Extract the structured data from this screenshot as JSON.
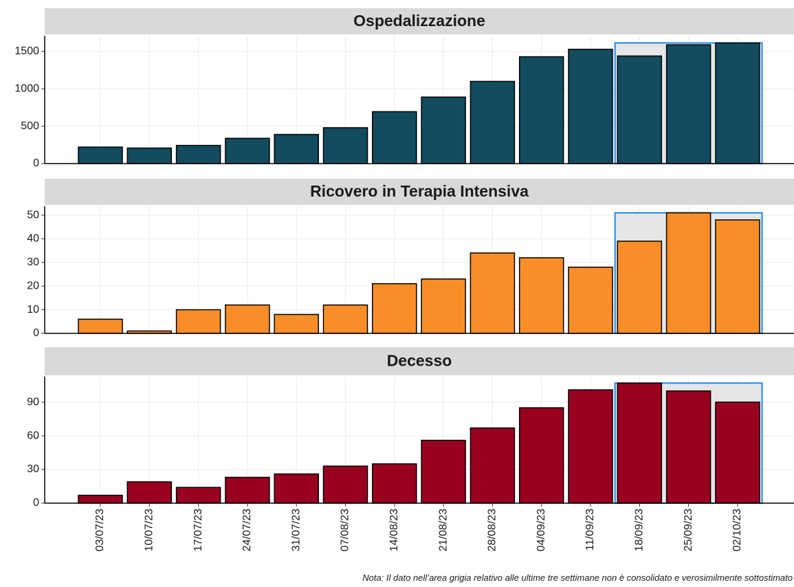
{
  "chart_data": [
    {
      "type": "bar",
      "title": "Ospedalizzazione",
      "color": "#134b5f",
      "values": [
        221,
        208,
        243,
        338,
        390,
        480,
        695,
        890,
        1100,
        1430,
        1530,
        1440,
        1590,
        1615
      ],
      "ylim": [
        0,
        1711
      ],
      "yticks": [
        0,
        500,
        1000,
        1500
      ],
      "grid": true
    },
    {
      "type": "bar",
      "title": "Ricovero in Terapia Intensiva",
      "color": "#f98e29",
      "values": [
        6,
        1,
        10,
        12,
        8,
        12,
        21,
        23,
        34,
        32,
        28,
        39,
        51,
        48
      ],
      "ylim": [
        0,
        53.8
      ],
      "yticks": [
        0,
        10,
        20,
        30,
        40,
        50
      ],
      "grid": true
    },
    {
      "type": "bar",
      "title": "Decesso",
      "color": "#99001f",
      "categories": [
        "03/07/23",
        "10/07/23",
        "17/07/23",
        "24/07/23",
        "31/07/23",
        "07/08/23",
        "14/08/23",
        "21/08/23",
        "28/08/23",
        "04/09/23",
        "11/09/23",
        "18/09/23",
        "25/09/23",
        "02/10/23"
      ],
      "values": [
        7,
        19,
        14,
        23,
        26,
        33,
        35,
        56,
        67,
        85,
        101,
        107,
        100,
        90
      ],
      "ylim": [
        0,
        112.7
      ],
      "yticks": [
        0,
        30,
        60,
        90
      ],
      "grid": true
    }
  ],
  "note": "Nota: Il dato nell’area grigia relativo alle ultime tre settimane non è consolidato e verosimilmente sottostimato"
}
